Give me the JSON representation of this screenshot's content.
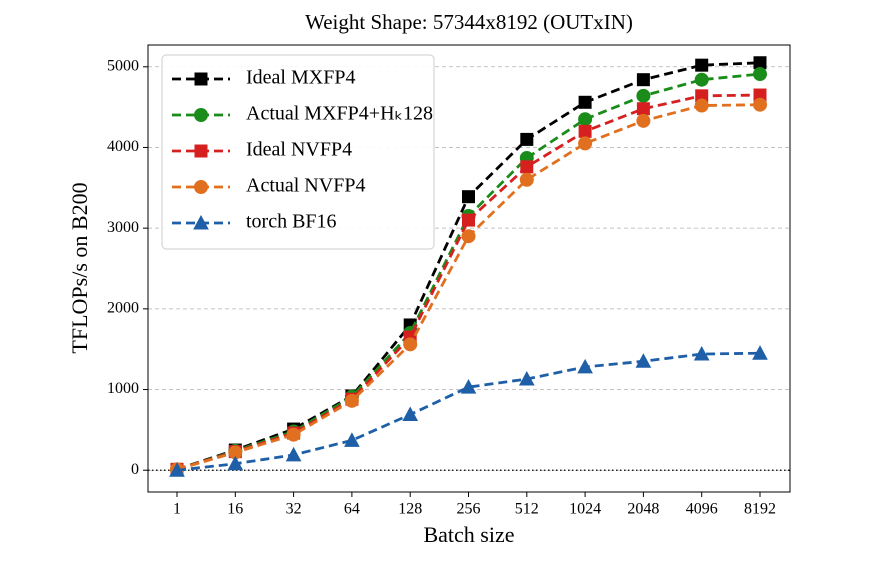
{
  "chart_data": {
    "type": "line",
    "title": "Weight Shape: 57344x8192 (OUTxIN)",
    "xlabel": "Batch size",
    "ylabel": "TFLOPs/s on B200",
    "categories": [
      "1",
      "16",
      "32",
      "64",
      "128",
      "256",
      "512",
      "1024",
      "2048",
      "4096",
      "8192"
    ],
    "ylim": [
      -270,
      5270
    ],
    "yticks": [
      0,
      1000,
      2000,
      3000,
      4000,
      5000
    ],
    "grid": true,
    "legend": "upper left",
    "series": [
      {
        "name": "Ideal MXFP4",
        "color": "#000000",
        "marker": "square",
        "values": [
          10,
          250,
          510,
          920,
          1800,
          3390,
          4100,
          4560,
          4840,
          5020,
          5050
        ]
      },
      {
        "name": "Actual MXFP4+Hₖ128",
        "color": "#1a8c1a",
        "marker": "circle",
        "values": [
          10,
          240,
          480,
          910,
          1700,
          3150,
          3870,
          4350,
          4640,
          4840,
          4910
        ]
      },
      {
        "name": "Ideal NVFP4",
        "color": "#d62020",
        "marker": "square",
        "values": [
          10,
          230,
          460,
          880,
          1650,
          3100,
          3760,
          4200,
          4480,
          4640,
          4650
        ]
      },
      {
        "name": "Actual NVFP4",
        "color": "#e0701f",
        "marker": "circle",
        "values": [
          10,
          220,
          440,
          860,
          1560,
          2900,
          3600,
          4050,
          4330,
          4520,
          4530
        ]
      },
      {
        "name": "torch BF16",
        "color": "#1f5fa8",
        "marker": "triangle",
        "values": [
          0,
          80,
          190,
          370,
          690,
          1030,
          1130,
          1280,
          1350,
          1440,
          1450
        ]
      }
    ]
  }
}
